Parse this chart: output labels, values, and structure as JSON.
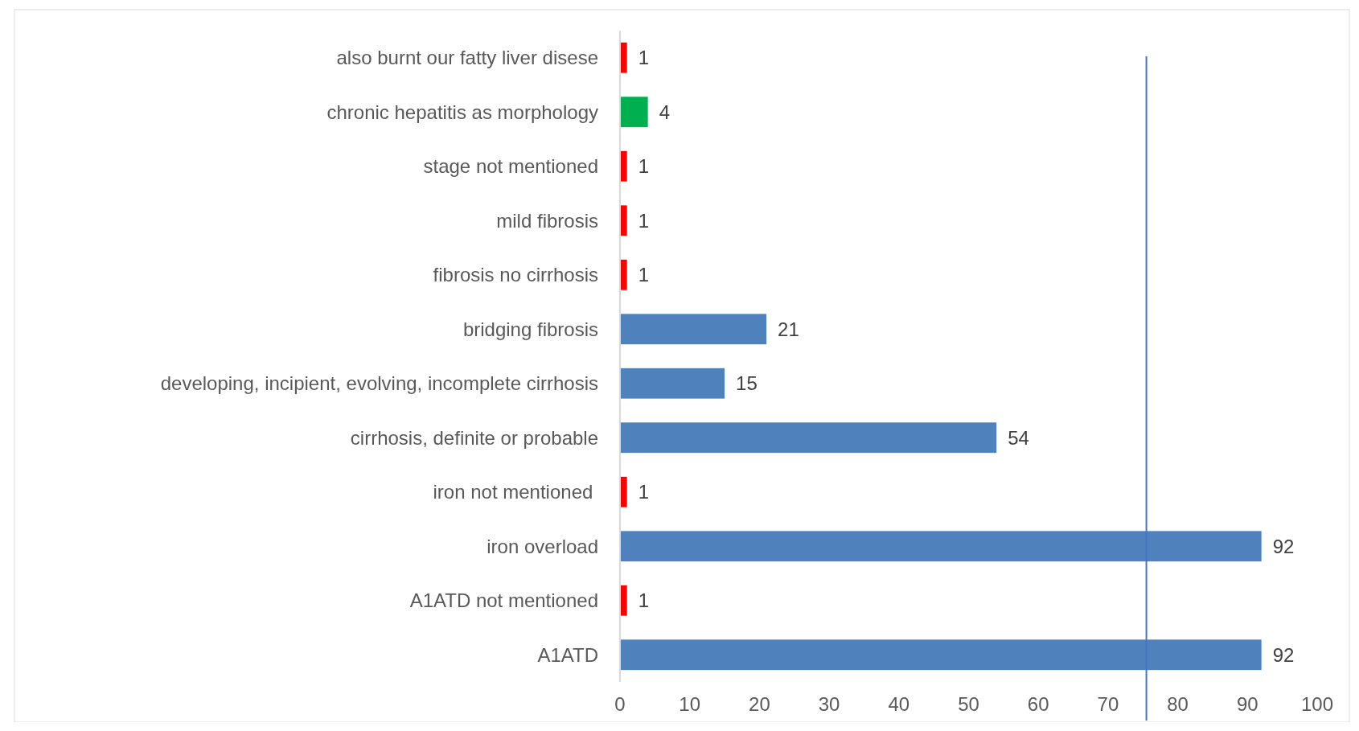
{
  "chart_data": {
    "type": "bar",
    "orientation": "horizontal",
    "categories": [
      "also burnt our fatty liver disese",
      "chronic hepatitis as morphology",
      "stage not mentioned",
      "mild fibrosis",
      "fibrosis no cirrhosis",
      "bridging fibrosis",
      "developing, incipient, evolving, incomplete cirrhosis",
      "cirrhosis, definite or probable",
      "iron not mentioned ",
      "iron overload",
      "A1ATD not mentioned",
      "A1ATD"
    ],
    "values": [
      1,
      4,
      1,
      1,
      1,
      21,
      15,
      54,
      1,
      92,
      1,
      92
    ],
    "colors": [
      "#ff0000",
      "#00b050",
      "#ff0000",
      "#ff0000",
      "#ff0000",
      "#4f81bd",
      "#4f81bd",
      "#4f81bd",
      "#ff0000",
      "#4f81bd",
      "#ff0000",
      "#4f81bd"
    ],
    "xlim": [
      0,
      100
    ],
    "xticks": [
      0,
      10,
      20,
      30,
      40,
      50,
      60,
      70,
      80,
      90,
      100
    ],
    "data_labels": true,
    "grid": false,
    "ref_lines": [
      {
        "axis": "x",
        "value": 75.5,
        "color": "#4472c4"
      }
    ]
  }
}
